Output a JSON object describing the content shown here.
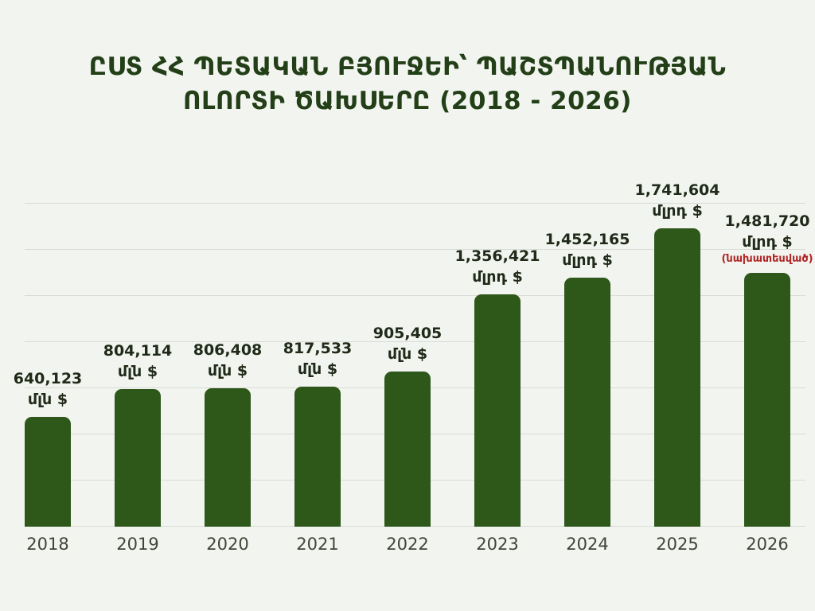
{
  "chart_data": {
    "type": "bar",
    "title": "ԸՍՏ ՀՀ ՊԵՏԱԿԱՆ ԲՅՈՒՋԵԻ՝ ՊԱՇՏՊԱՆՈՒԹՅԱՆ\nՈԼՈՐՏԻ ԾԱԽՍԵՐԸ (2018 - 2026)",
    "xlabel": "",
    "ylabel": "",
    "categories": [
      "2018",
      "2019",
      "2020",
      "2021",
      "2022",
      "2023",
      "2024",
      "2025",
      "2026"
    ],
    "values": [
      640123,
      804114,
      806408,
      817533,
      905405,
      1356421,
      1452165,
      1741604,
      1481720
    ],
    "value_labels": [
      "640,123",
      "804,114",
      "806,408",
      "817,533",
      "905,405",
      "1,356,421",
      "1,452,165",
      "1,741,604",
      "1,481,720"
    ],
    "units": [
      "մլն $",
      "մլն $",
      "մլն $",
      "մլն $",
      "մլն $",
      "մլրդ $",
      "մլրդ $",
      "մլրդ $",
      "մլրդ $"
    ],
    "notes": [
      null,
      null,
      null,
      null,
      null,
      null,
      null,
      null,
      "(նախատեսված)"
    ],
    "ylim": [
      0,
      1800000
    ],
    "grid": "horizontal",
    "legend": "none",
    "colors": {
      "background": "#f2f4ef",
      "bar": "#2e571a",
      "title": "#223f17",
      "value_label": "#202a18",
      "axis_label": "#3f4539",
      "gridline": "#d9dcd6",
      "note": "#b02424"
    }
  }
}
